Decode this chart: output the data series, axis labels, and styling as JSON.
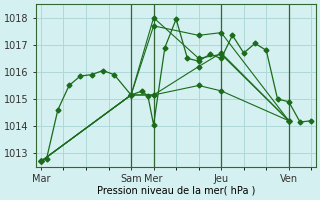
{
  "xlabel": "Pression niveau de la mer( hPa )",
  "background_color": "#d4f0f0",
  "grid_color": "#b0d8d8",
  "line_color": "#1a6b1a",
  "ylim": [
    1012.5,
    1018.5
  ],
  "xtick_labels": [
    "Mar",
    "Sam",
    "Mer",
    "Jeu",
    "Ven"
  ],
  "xtick_positions": [
    0,
    4,
    5,
    8,
    11
  ],
  "xlim": [
    -0.2,
    12.2
  ],
  "ytick_values": [
    1013,
    1014,
    1015,
    1016,
    1017,
    1018
  ],
  "vlines": [
    4,
    5,
    8,
    11
  ],
  "series": [
    {
      "x": [
        0,
        0.25,
        0.75,
        1.25,
        1.75,
        2.25,
        2.75,
        3.25,
        4.0,
        4.5,
        4.75,
        5.0,
        5.5,
        6.0,
        6.5,
        7.0,
        7.5,
        8.0,
        8.5,
        9.0,
        9.5,
        10.0,
        10.5,
        11.0,
        11.5,
        12.0
      ],
      "y": [
        1012.7,
        1012.8,
        1014.6,
        1015.5,
        1015.85,
        1015.9,
        1016.05,
        1015.9,
        1015.15,
        1015.3,
        1015.1,
        1014.05,
        1016.9,
        1017.95,
        1016.5,
        1016.4,
        1016.65,
        1016.5,
        1017.35,
        1016.7,
        1017.05,
        1016.8,
        1015.0,
        1014.9,
        1014.15,
        1014.2
      ]
    },
    {
      "x": [
        0,
        4.0,
        5.0,
        7.0,
        8.0,
        11.0
      ],
      "y": [
        1012.7,
        1015.15,
        1018.0,
        1016.5,
        1016.65,
        1014.2
      ]
    },
    {
      "x": [
        0,
        4.0,
        5.0,
        7.0,
        8.0,
        11.0
      ],
      "y": [
        1012.7,
        1015.15,
        1017.7,
        1017.35,
        1017.45,
        1014.2
      ]
    },
    {
      "x": [
        0,
        4.0,
        5.0,
        7.0,
        8.0,
        11.0
      ],
      "y": [
        1012.7,
        1015.15,
        1015.15,
        1016.2,
        1016.7,
        1014.2
      ]
    },
    {
      "x": [
        0,
        4.0,
        5.0,
        7.0,
        8.0,
        11.0
      ],
      "y": [
        1012.7,
        1015.15,
        1015.15,
        1015.5,
        1015.3,
        1014.2
      ]
    }
  ],
  "markersize": 2.5
}
